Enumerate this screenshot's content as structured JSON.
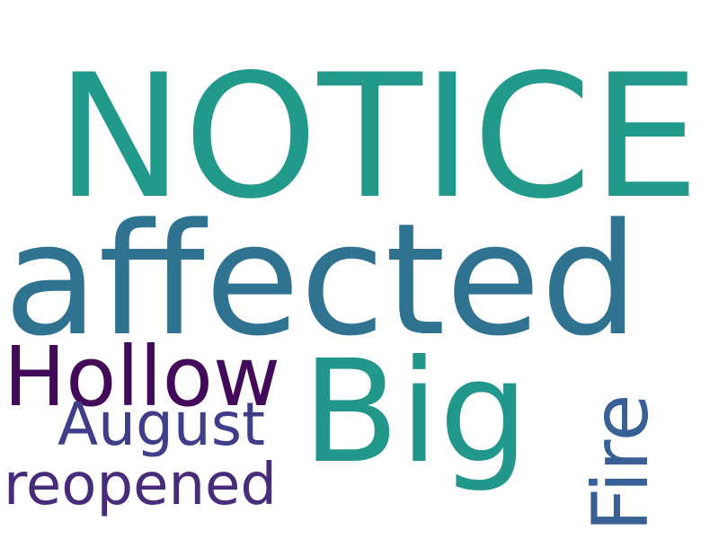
{
  "words": [
    {
      "text": "NOTICE",
      "color": "#21998b"
    },
    {
      "text": "affected",
      "color": "#2f7390"
    },
    {
      "text": "Hollow",
      "color": "#440a5a"
    },
    {
      "text": "Big",
      "color": "#22978c"
    },
    {
      "text": "August",
      "color": "#403e8b"
    },
    {
      "text": "reopened",
      "color": "#482b7a"
    },
    {
      "text": "Fire",
      "color": "#386096"
    }
  ]
}
